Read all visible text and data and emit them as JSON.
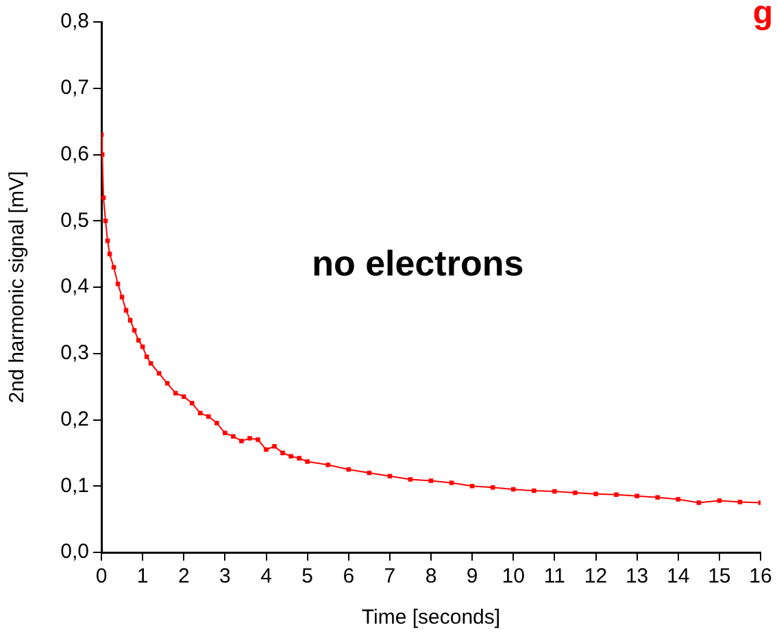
{
  "chart_data": {
    "type": "line",
    "xlabel": "Time [seconds]",
    "ylabel": "2nd harmonic signal [mV]",
    "annotations": [
      "no electrons",
      "g"
    ],
    "x": [
      0,
      0.02,
      0.05,
      0.1,
      0.15,
      0.2,
      0.3,
      0.4,
      0.5,
      0.6,
      0.7,
      0.8,
      0.9,
      1.0,
      1.1,
      1.2,
      1.4,
      1.6,
      1.8,
      2.0,
      2.2,
      2.4,
      2.6,
      2.8,
      3.0,
      3.2,
      3.4,
      3.6,
      3.8,
      4.0,
      4.2,
      4.4,
      4.6,
      4.8,
      5.0,
      5.5,
      6,
      6.5,
      7,
      7.5,
      8,
      8.5,
      9,
      9.5,
      10,
      10.5,
      11,
      11.5,
      12,
      12.5,
      13,
      13.5,
      14,
      14.5,
      15,
      15.5,
      16
    ],
    "series": [
      {
        "color": "#ff0000",
        "values": [
          0.63,
          0.6,
          0.535,
          0.5,
          0.47,
          0.45,
          0.43,
          0.405,
          0.385,
          0.365,
          0.35,
          0.335,
          0.32,
          0.31,
          0.295,
          0.285,
          0.27,
          0.255,
          0.24,
          0.235,
          0.225,
          0.21,
          0.205,
          0.195,
          0.18,
          0.175,
          0.168,
          0.172,
          0.17,
          0.155,
          0.16,
          0.15,
          0.145,
          0.142,
          0.137,
          0.132,
          0.125,
          0.12,
          0.115,
          0.11,
          0.108,
          0.105,
          0.1,
          0.098,
          0.095,
          0.093,
          0.092,
          0.09,
          0.088,
          0.087,
          0.085,
          0.083,
          0.08,
          0.075,
          0.078,
          0.076,
          0.075
        ]
      }
    ],
    "xlim": [
      0,
      16
    ],
    "xticks": [
      0,
      1,
      2,
      3,
      4,
      5,
      6,
      7,
      8,
      9,
      10,
      11,
      12,
      13,
      14,
      15,
      16
    ],
    "ylim": [
      0,
      0.8
    ],
    "yticks": [
      {
        "value": 0,
        "label": "0,0"
      },
      {
        "value": 0.1,
        "label": "0,1"
      },
      {
        "value": 0.2,
        "label": "0,2"
      },
      {
        "value": 0.3,
        "label": "0,3"
      },
      {
        "value": 0.4,
        "label": "0,4"
      },
      {
        "value": 0.5,
        "label": "0,5"
      },
      {
        "value": 0.6,
        "label": "0,6"
      },
      {
        "value": 0.7,
        "label": "0,7"
      },
      {
        "value": 0.8,
        "label": "0,8"
      }
    ],
    "grid": false,
    "legend": false,
    "marker": "square",
    "line_style": "solid"
  }
}
